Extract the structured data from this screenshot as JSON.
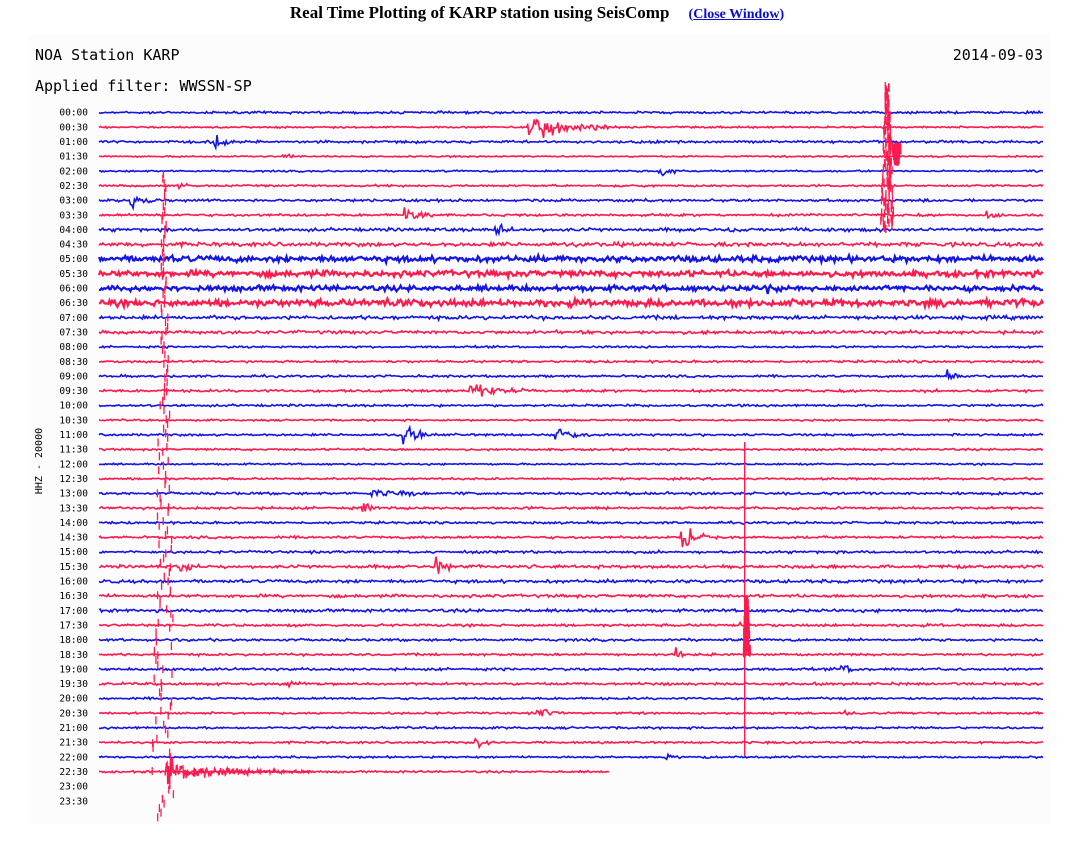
{
  "page": {
    "title": "Real Time Plotting of KARP station using SeisComp",
    "close_link": {
      "open_paren": "(",
      "label": "Close Window",
      "close_paren": ")"
    }
  },
  "chart_data": {
    "type": "line",
    "title": "NOA Station KARP",
    "date": "2014-09-03",
    "filter_label": "Applied filter: WWSSN-SP",
    "ylabel": "HHZ - 20000",
    "colors": {
      "blue": "#1414e6",
      "red": "#ff1a4d"
    },
    "rows": [
      {
        "label": "00:00",
        "color": "blue"
      },
      {
        "label": "00:30",
        "color": "red"
      },
      {
        "label": "01:00",
        "color": "blue"
      },
      {
        "label": "01:30",
        "color": "red"
      },
      {
        "label": "02:00",
        "color": "blue"
      },
      {
        "label": "02:30",
        "color": "red"
      },
      {
        "label": "03:00",
        "color": "blue"
      },
      {
        "label": "03:30",
        "color": "red"
      },
      {
        "label": "04:00",
        "color": "blue"
      },
      {
        "label": "04:30",
        "color": "red"
      },
      {
        "label": "05:00",
        "color": "blue"
      },
      {
        "label": "05:30",
        "color": "red"
      },
      {
        "label": "06:00",
        "color": "blue"
      },
      {
        "label": "06:30",
        "color": "red"
      },
      {
        "label": "07:00",
        "color": "blue"
      },
      {
        "label": "07:30",
        "color": "red"
      },
      {
        "label": "08:00",
        "color": "blue"
      },
      {
        "label": "08:30",
        "color": "red"
      },
      {
        "label": "09:00",
        "color": "blue"
      },
      {
        "label": "09:30",
        "color": "red"
      },
      {
        "label": "10:00",
        "color": "blue"
      },
      {
        "label": "10:30",
        "color": "red"
      },
      {
        "label": "11:00",
        "color": "blue"
      },
      {
        "label": "11:30",
        "color": "red"
      },
      {
        "label": "12:00",
        "color": "blue"
      },
      {
        "label": "12:30",
        "color": "red"
      },
      {
        "label": "13:00",
        "color": "blue"
      },
      {
        "label": "13:30",
        "color": "red"
      },
      {
        "label": "14:00",
        "color": "blue"
      },
      {
        "label": "14:30",
        "color": "red"
      },
      {
        "label": "15:00",
        "color": "blue"
      },
      {
        "label": "15:30",
        "color": "red"
      },
      {
        "label": "16:00",
        "color": "blue"
      },
      {
        "label": "16:30",
        "color": "red"
      },
      {
        "label": "17:00",
        "color": "blue"
      },
      {
        "label": "17:30",
        "color": "red"
      },
      {
        "label": "18:00",
        "color": "blue"
      },
      {
        "label": "18:30",
        "color": "red"
      },
      {
        "label": "19:00",
        "color": "blue"
      },
      {
        "label": "19:30",
        "color": "red"
      },
      {
        "label": "20:00",
        "color": "blue"
      },
      {
        "label": "20:30",
        "color": "red"
      },
      {
        "label": "21:00",
        "color": "blue"
      },
      {
        "label": "21:30",
        "color": "red"
      },
      {
        "label": "22:00",
        "color": "blue"
      },
      {
        "label": "22:30",
        "color": "red"
      },
      {
        "label": "23:00",
        "color": "none"
      },
      {
        "label": "23:30",
        "color": "none"
      }
    ]
  }
}
